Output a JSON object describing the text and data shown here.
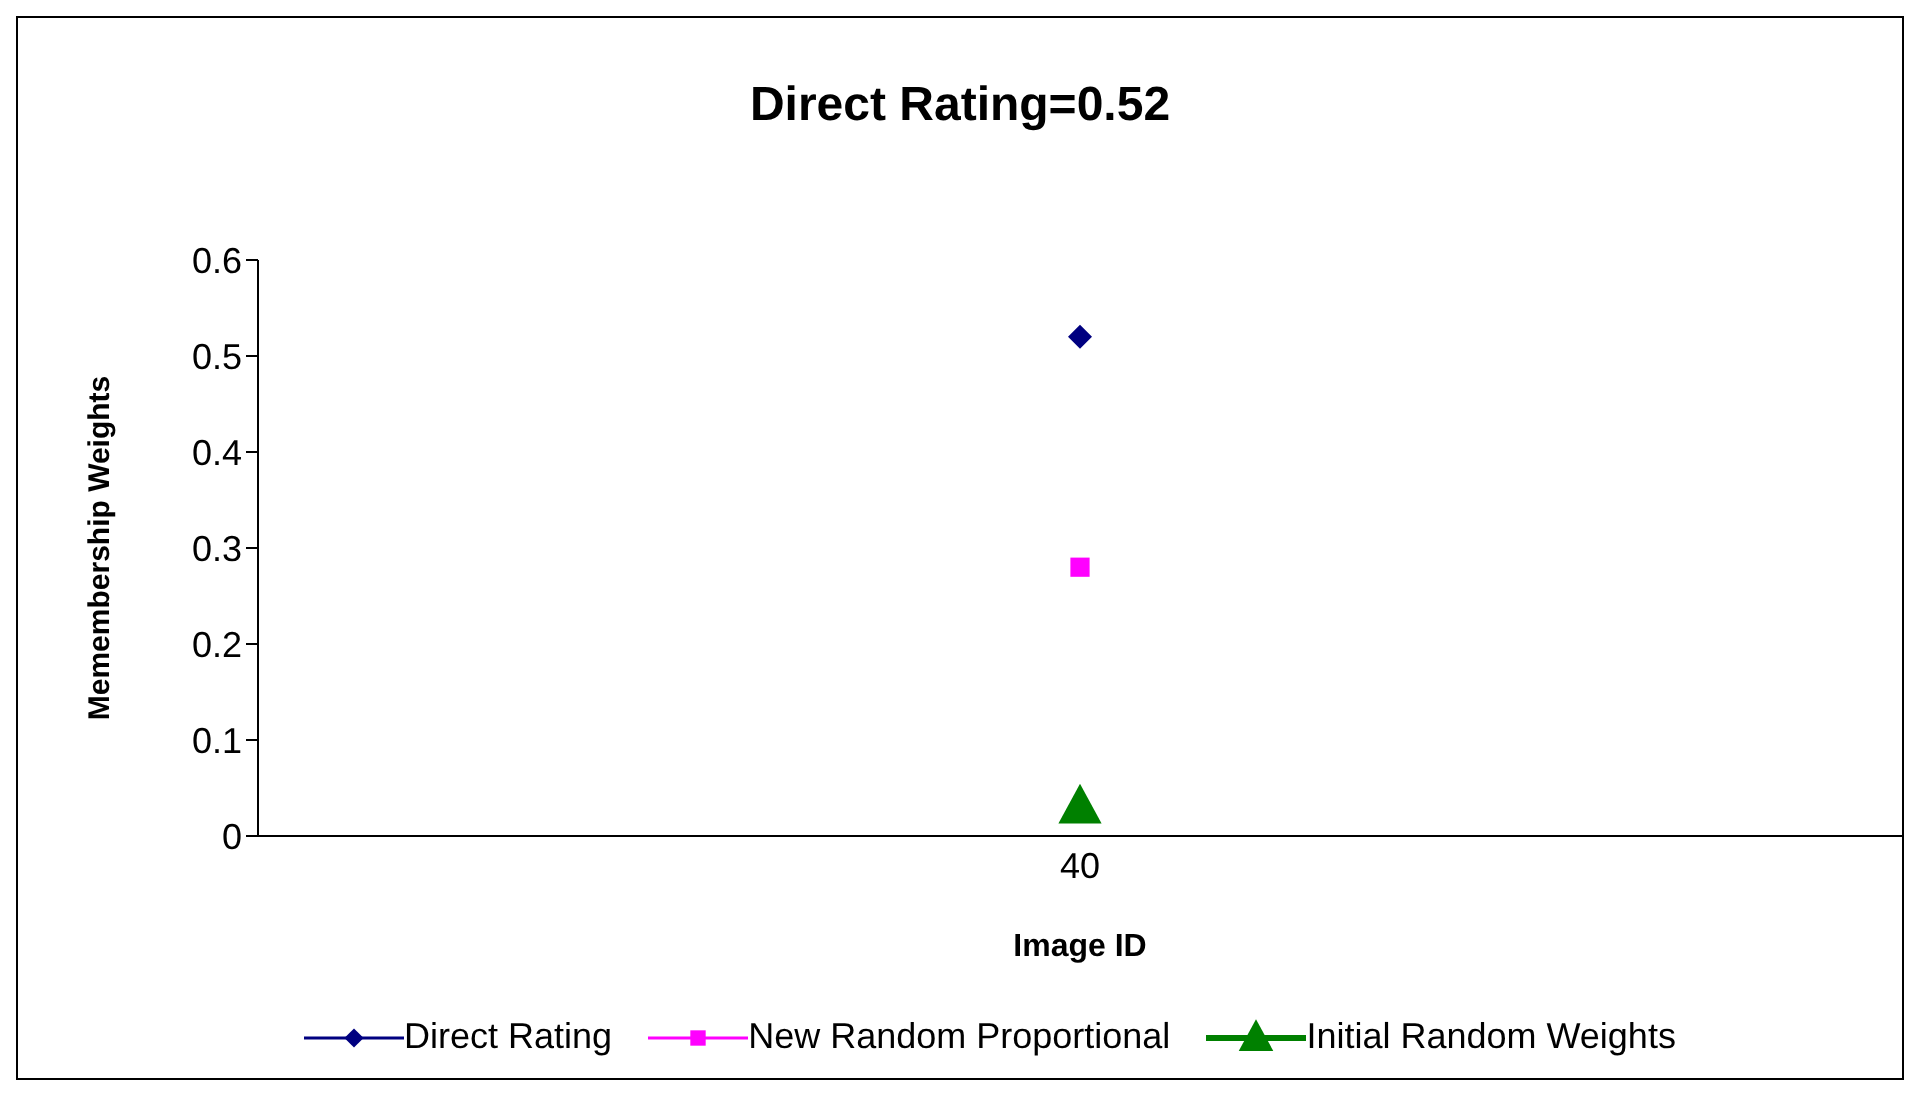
{
  "chart_data": {
    "type": "line",
    "title": "Direct Rating=0.52",
    "xlabel": "Image ID",
    "ylabel": "Memembership Weights",
    "categories": [
      "40"
    ],
    "series": [
      {
        "name": "Direct Rating",
        "color": "#000080",
        "values": [
          0.52
        ],
        "marker": "diamond"
      },
      {
        "name": "New Random Proportional",
        "color": "#ff00ff",
        "values": [
          0.28
        ],
        "marker": "square"
      },
      {
        "name": "Initial Random Weights",
        "color": "#008000",
        "values": [
          0.03
        ],
        "marker": "triangle"
      }
    ],
    "ylim": [
      0,
      0.6
    ],
    "yticks": [
      0,
      0.1,
      0.2,
      0.3,
      0.4,
      0.5,
      0.6
    ],
    "grid": false,
    "legend": "bottom"
  }
}
